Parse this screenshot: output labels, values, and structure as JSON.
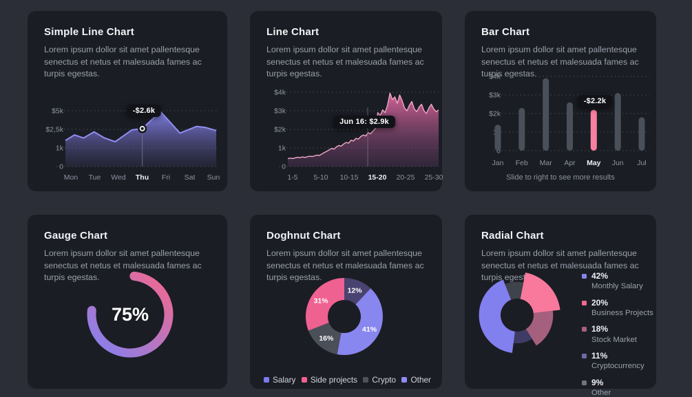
{
  "page": {
    "background": "#2b2e36",
    "card_background": "#1b1d24"
  },
  "cards": [
    {
      "title": "Simple Line Chart",
      "description": "Lorem ipsum dollor sit amet pallentesque senectus et netus et malesuada fames ac turpis egestas."
    },
    {
      "title": "Line Chart",
      "description": "Lorem ipsum dollor sit amet pallentesque senectus et netus et malesuada fames ac turpis egestas."
    },
    {
      "title": "Bar Chart",
      "description": "Lorem ipsum dollor sit amet pallentesque senectus et netus et malesuada fames ac turpis egestas.",
      "footer": "Slide to right to see more results"
    },
    {
      "title": "Gauge Chart",
      "description": "Lorem ipsum dollor sit amet pallentesque senectus et netus et malesuada fames ac turpis egestas."
    },
    {
      "title": "Doghnut Chart",
      "description": "Lorem ipsum dollor sit amet pallentesque senectus et netus et malesuada fames ac turpis egestas."
    },
    {
      "title": "Radial Chart",
      "description": "Lorem ipsum dollor sit amet pallentesque senectus et netus et malesuada fames ac turpis egestas."
    }
  ],
  "chart_data": [
    {
      "type": "area",
      "title": "Simple Line Chart",
      "x_labels": [
        "Mon",
        "Tue",
        "Wed",
        "Thu",
        "Fri",
        "Sat",
        "Sun"
      ],
      "highlighted_x": "Thu",
      "y_ticks": [
        "$5k",
        "$2,5k",
        "1k",
        "0"
      ],
      "y_tick_values": [
        5000,
        2500,
        1000,
        0
      ],
      "points_x": [
        0,
        0.06,
        0.12,
        0.19,
        0.26,
        0.33,
        0.44,
        0.51,
        0.63,
        0.76,
        0.87,
        0.93,
        1.0
      ],
      "values": [
        1600,
        2050,
        1800,
        2300,
        1800,
        1500,
        2450,
        2600,
        4900,
        2200,
        2900,
        2750,
        2400
      ],
      "marker_index": 7,
      "tooltip": "-$2.6k",
      "line_color": "#908ef3",
      "fill_top": "#8583ec",
      "fill_bottom": "#565390",
      "grid": true
    },
    {
      "type": "area",
      "title": "Line Chart",
      "x_labels": [
        "1-5",
        "5-10",
        "10-15",
        "15-20",
        "20-25",
        "25-30"
      ],
      "highlighted_x": "15-20",
      "y_ticks": [
        "$4k",
        "$3k",
        "$2k",
        "1k",
        "0"
      ],
      "y_tick_values": [
        4000,
        3000,
        2000,
        1000,
        0
      ],
      "values": [
        420,
        450,
        430,
        465,
        495,
        475,
        515,
        490,
        525,
        555,
        535,
        575,
        615,
        595,
        675,
        755,
        815,
        895,
        975,
        935,
        1055,
        1135,
        1095,
        1215,
        1295,
        1255,
        1415,
        1375,
        1515,
        1475,
        1615,
        1695,
        1640,
        1820,
        1760,
        1900,
        2050,
        2900,
        2750,
        3050,
        2900,
        3300,
        3950,
        3600,
        3750,
        3400,
        3850,
        3550,
        3150,
        3000,
        3300,
        3500,
        3100,
        2950,
        3200,
        3350,
        3000,
        2850,
        3150,
        3350,
        3100,
        2950,
        3050
      ],
      "cursor_fraction": 0.53,
      "tooltip": "Jun 16: $2.9k",
      "line_color": "#f0a9c9",
      "fill_top": "#df679d",
      "fill_bottom": "#5c3a64",
      "grid": true
    },
    {
      "type": "bar",
      "title": "Bar Chart",
      "categories": [
        "Jan",
        "Feb",
        "Mar",
        "Apr",
        "May",
        "Jun",
        "Jul"
      ],
      "values": [
        1400,
        2300,
        3900,
        2600,
        2200,
        3100,
        1800
      ],
      "highlighted": "May",
      "y_ticks": [
        "$4k",
        "$3k",
        "$2k",
        "1k",
        "0"
      ],
      "y_tick_values": [
        4000,
        3000,
        2000,
        1000,
        0
      ],
      "tooltip": "-$2.2k",
      "bar_color": "#4a5059",
      "highlight_color": "#f8809f",
      "footer": "Slide to right to see more results",
      "grid": true
    },
    {
      "type": "gauge",
      "title": "Gauge Chart",
      "value_pct": 75,
      "label": "75%",
      "start_color": "#f4688e",
      "end_color": "#8181f2"
    },
    {
      "type": "donut",
      "title": "Doghnut Chart",
      "segments": [
        {
          "label": "Other",
          "pct": 12,
          "color": "#494370",
          "data_label": "12%"
        },
        {
          "label": "Salary",
          "pct": 41,
          "color": "#8886ef",
          "data_label": "41%"
        },
        {
          "label": "Crypto",
          "pct": 16,
          "color": "#4a4f58",
          "data_label": "16%"
        },
        {
          "label": "Side projects",
          "pct": 31,
          "color": "#ef6191",
          "data_label": "31%"
        }
      ],
      "legend": [
        {
          "label": "Salary",
          "color": "#7c7aed"
        },
        {
          "label": "Side projects",
          "color": "#ef6190"
        },
        {
          "label": "Crypto",
          "color": "#4e535b"
        },
        {
          "label": "Other",
          "color": "#8e8cf3"
        }
      ],
      "legend_position": "bottom"
    },
    {
      "type": "radial",
      "title": "Radial Chart",
      "start_offset_deg": 11,
      "segments": [
        {
          "label": "Business Projects",
          "pct": 20,
          "color": "#f8799c",
          "radius": 1.0
        },
        {
          "label": "Stock Market",
          "pct": 18,
          "color": "#a5607d",
          "radius": 0.83
        },
        {
          "label": "Cryptocurrency",
          "pct": 11,
          "color": "#3e3c64",
          "radius": 0.65
        },
        {
          "label": "Monthly Salary",
          "pct": 42,
          "color": "#8280ee",
          "radius": 0.88
        },
        {
          "label": "Other",
          "pct": 9,
          "color": "#3e434c",
          "radius": 0.77
        }
      ],
      "legend": [
        {
          "pct": "42%",
          "label": "Monthly Salary",
          "color": "#8583ee"
        },
        {
          "pct": "20%",
          "label": "Business Projects",
          "color": "#f2688f"
        },
        {
          "pct": "18%",
          "label": "Stock Market",
          "color": "#a8617e"
        },
        {
          "pct": "11%",
          "label": "Cryptocurrency",
          "color": "#6f69a5"
        },
        {
          "pct": "9%",
          "label": "Other",
          "color": "#70747d"
        }
      ],
      "legend_position": "right"
    }
  ]
}
